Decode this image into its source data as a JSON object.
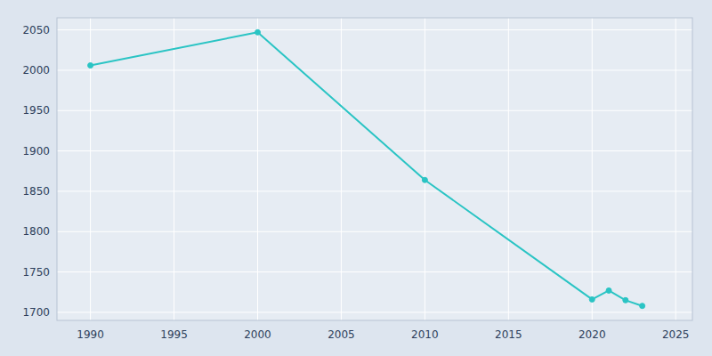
{
  "chart_data": {
    "type": "line",
    "x": [
      1990,
      2000,
      2010,
      2020,
      2021,
      2022,
      2023
    ],
    "values": [
      2006,
      2047,
      1864,
      1716,
      1727,
      1715,
      1708
    ],
    "color": "#2ac4c4",
    "marker": "circle",
    "xlim": [
      1988,
      2026
    ],
    "ylim": [
      1690,
      2065
    ],
    "xticks": [
      1990,
      1995,
      2000,
      2005,
      2010,
      2015,
      2020,
      2025
    ],
    "yticks": [
      1700,
      1750,
      1800,
      1850,
      1900,
      1950,
      2000,
      2050
    ],
    "grid": true
  }
}
